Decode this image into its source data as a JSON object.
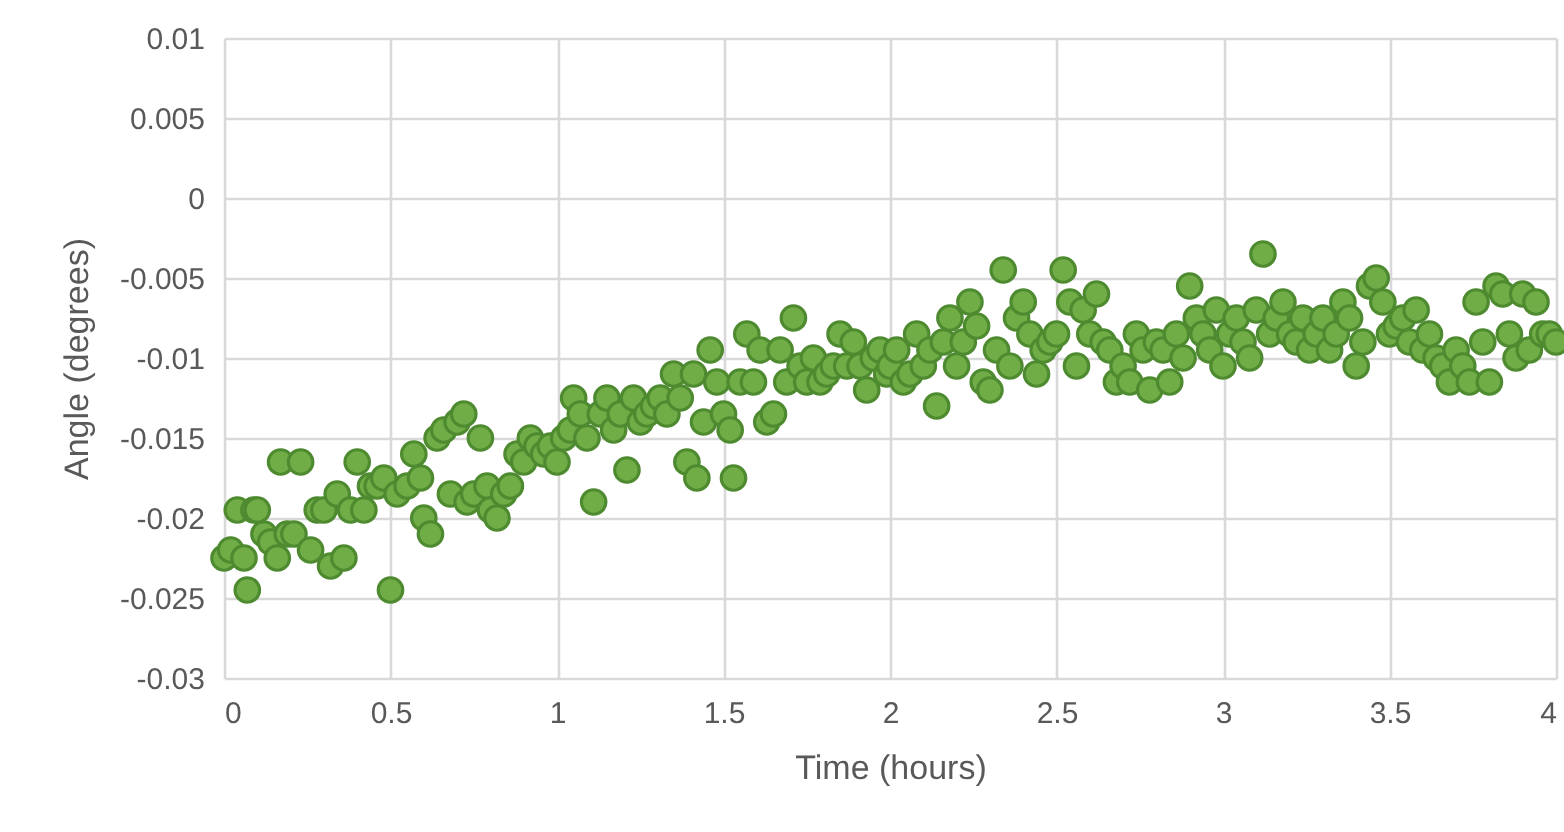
{
  "chart_data": {
    "type": "scatter",
    "xlabel": "Time (hours)",
    "ylabel": "Angle (degrees)",
    "xlim": [
      0,
      4
    ],
    "ylim": [
      -0.03,
      0.01
    ],
    "xticks": [
      0,
      0.5,
      1,
      1.5,
      2,
      2.5,
      3,
      3.5,
      4
    ],
    "yticks": [
      -0.03,
      -0.025,
      -0.02,
      -0.015,
      -0.01,
      -0.005,
      0,
      0.005,
      0.01
    ],
    "grid": true,
    "marker": "circle",
    "series": [
      {
        "color": "#70ad47",
        "x": [
          0.0,
          0.02,
          0.04,
          0.06,
          0.07,
          0.09,
          0.1,
          0.12,
          0.14,
          0.16,
          0.17,
          0.19,
          0.21,
          0.23,
          0.26,
          0.28,
          0.3,
          0.32,
          0.34,
          0.36,
          0.38,
          0.4,
          0.42,
          0.44,
          0.46,
          0.48,
          0.5,
          0.52,
          0.55,
          0.57,
          0.59,
          0.6,
          0.62,
          0.64,
          0.66,
          0.68,
          0.7,
          0.72,
          0.73,
          0.75,
          0.77,
          0.79,
          0.8,
          0.82,
          0.84,
          0.86,
          0.88,
          0.9,
          0.92,
          0.94,
          0.96,
          0.98,
          1.0,
          1.02,
          1.04,
          1.05,
          1.07,
          1.09,
          1.11,
          1.13,
          1.15,
          1.17,
          1.19,
          1.21,
          1.23,
          1.25,
          1.27,
          1.29,
          1.31,
          1.33,
          1.35,
          1.37,
          1.39,
          1.41,
          1.42,
          1.44,
          1.46,
          1.48,
          1.5,
          1.52,
          1.53,
          1.55,
          1.57,
          1.59,
          1.61,
          1.63,
          1.65,
          1.67,
          1.69,
          1.71,
          1.73,
          1.75,
          1.77,
          1.79,
          1.81,
          1.83,
          1.85,
          1.87,
          1.89,
          1.91,
          1.93,
          1.95,
          1.97,
          1.99,
          2.0,
          2.02,
          2.04,
          2.06,
          2.08,
          2.1,
          2.12,
          2.14,
          2.16,
          2.18,
          2.2,
          2.22,
          2.24,
          2.26,
          2.28,
          2.3,
          2.32,
          2.34,
          2.36,
          2.38,
          2.4,
          2.42,
          2.44,
          2.46,
          2.48,
          2.5,
          2.52,
          2.54,
          2.56,
          2.58,
          2.6,
          2.62,
          2.64,
          2.66,
          2.68,
          2.7,
          2.72,
          2.74,
          2.76,
          2.78,
          2.8,
          2.82,
          2.84,
          2.86,
          2.88,
          2.9,
          2.92,
          2.94,
          2.96,
          2.98,
          3.0,
          3.02,
          3.04,
          3.06,
          3.08,
          3.1,
          3.12,
          3.14,
          3.16,
          3.18,
          3.2,
          3.22,
          3.24,
          3.26,
          3.28,
          3.3,
          3.32,
          3.34,
          3.36,
          3.38,
          3.4,
          3.42,
          3.44,
          3.46,
          3.48,
          3.5,
          3.52,
          3.54,
          3.56,
          3.58,
          3.6,
          3.62,
          3.64,
          3.66,
          3.68,
          3.7,
          3.72,
          3.74,
          3.76,
          3.78,
          3.8,
          3.82,
          3.84,
          3.86,
          3.88,
          3.9,
          3.92,
          3.94,
          3.96,
          3.98,
          4.0
        ],
        "values": [
          -0.0225,
          -0.022,
          -0.0195,
          -0.0225,
          -0.0245,
          -0.0195,
          -0.0195,
          -0.021,
          -0.0215,
          -0.0225,
          -0.0165,
          -0.021,
          -0.021,
          -0.0165,
          -0.022,
          -0.0195,
          -0.0195,
          -0.023,
          -0.0185,
          -0.0225,
          -0.0195,
          -0.0165,
          -0.0195,
          -0.018,
          -0.018,
          -0.0175,
          -0.0245,
          -0.0185,
          -0.018,
          -0.016,
          -0.0175,
          -0.02,
          -0.021,
          -0.015,
          -0.0145,
          -0.0185,
          -0.014,
          -0.0135,
          -0.019,
          -0.0185,
          -0.015,
          -0.018,
          -0.0195,
          -0.02,
          -0.0185,
          -0.018,
          -0.016,
          -0.0165,
          -0.015,
          -0.0155,
          -0.016,
          -0.0155,
          -0.0165,
          -0.015,
          -0.0145,
          -0.0125,
          -0.0135,
          -0.015,
          -0.019,
          -0.0135,
          -0.0125,
          -0.0145,
          -0.0135,
          -0.017,
          -0.0125,
          -0.014,
          -0.0135,
          -0.013,
          -0.0125,
          -0.0135,
          -0.011,
          -0.0125,
          -0.0165,
          -0.011,
          -0.0175,
          -0.014,
          -0.0095,
          -0.0115,
          -0.0135,
          -0.0145,
          -0.0175,
          -0.0115,
          -0.0085,
          -0.0115,
          -0.0095,
          -0.014,
          -0.0135,
          -0.0095,
          -0.0115,
          -0.0075,
          -0.0105,
          -0.0115,
          -0.01,
          -0.0115,
          -0.011,
          -0.0105,
          -0.0085,
          -0.0105,
          -0.009,
          -0.0105,
          -0.012,
          -0.01,
          -0.0095,
          -0.011,
          -0.0105,
          -0.0095,
          -0.0115,
          -0.011,
          -0.0085,
          -0.0105,
          -0.0095,
          -0.013,
          -0.009,
          -0.0075,
          -0.0105,
          -0.009,
          -0.0065,
          -0.008,
          -0.0115,
          -0.012,
          -0.0095,
          -0.0045,
          -0.0105,
          -0.0075,
          -0.0065,
          -0.0085,
          -0.011,
          -0.0095,
          -0.009,
          -0.0085,
          -0.0045,
          -0.0065,
          -0.0105,
          -0.007,
          -0.0085,
          -0.006,
          -0.009,
          -0.0095,
          -0.0115,
          -0.0105,
          -0.0115,
          -0.0085,
          -0.0095,
          -0.012,
          -0.009,
          -0.0095,
          -0.0115,
          -0.0085,
          -0.01,
          -0.0055,
          -0.0075,
          -0.0085,
          -0.0095,
          -0.007,
          -0.0105,
          -0.0085,
          -0.0075,
          -0.009,
          -0.01,
          -0.007,
          -0.0035,
          -0.0085,
          -0.0075,
          -0.0065,
          -0.0085,
          -0.009,
          -0.0075,
          -0.0095,
          -0.0085,
          -0.0075,
          -0.0095,
          -0.0085,
          -0.0065,
          -0.0075,
          -0.0105,
          -0.009,
          -0.0055,
          -0.005,
          -0.0065,
          -0.0085,
          -0.008,
          -0.0075,
          -0.009,
          -0.007,
          -0.0095,
          -0.0085,
          -0.01,
          -0.0105,
          -0.0115,
          -0.0095,
          -0.0105,
          -0.0115,
          -0.0065,
          -0.009,
          -0.0115,
          -0.0055,
          -0.006,
          -0.0085,
          -0.01,
          -0.006,
          -0.0095,
          -0.0065,
          -0.0085,
          -0.0085,
          -0.009
        ]
      }
    ]
  }
}
